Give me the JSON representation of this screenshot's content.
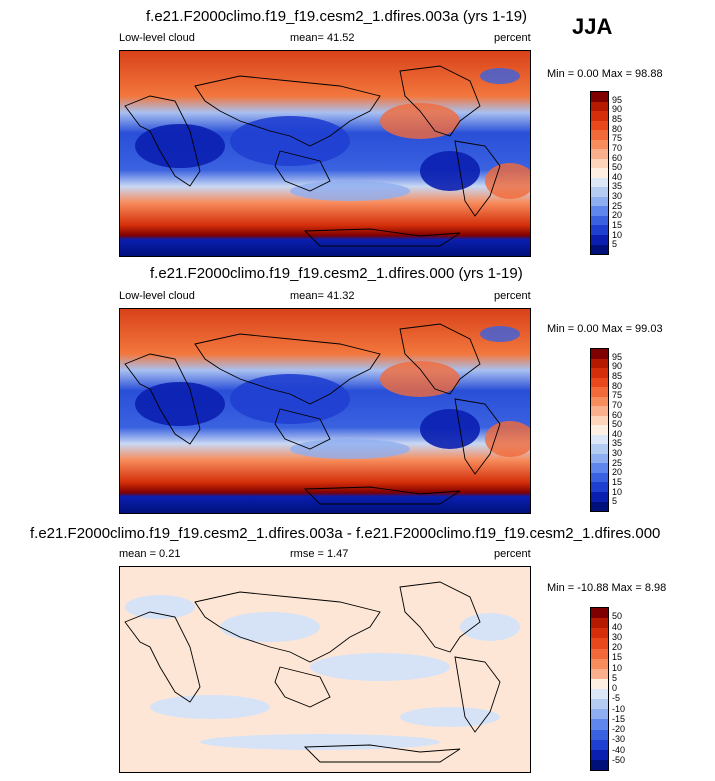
{
  "season": "JJA",
  "panels": [
    {
      "title": "f.e21.F2000climo.f19_f19.cesm2_1.dfires.003a (yrs 1-19)",
      "left_label": "Low-level cloud",
      "stat_label": "mean= ",
      "stat_value": "41.52",
      "units": "percent",
      "minmax": "Min =   0.00 Max =  98.88",
      "colorbar_labels": [
        "95",
        "90",
        "85",
        "80",
        "75",
        "70",
        "60",
        "50",
        "40",
        "35",
        "30",
        "25",
        "20",
        "15",
        "10",
        "5"
      ],
      "colorbar_colors": [
        "#7f0000",
        "#b51a00",
        "#d42f0a",
        "#e8481c",
        "#f26a3a",
        "#f78c5c",
        "#fab08c",
        "#fdd5bb",
        "#fdf0e2",
        "#dce8f8",
        "#b5ccf2",
        "#8eaef0",
        "#5f86ec",
        "#3a62e0",
        "#1f3fd0",
        "#0a1fb0",
        "#00107a"
      ]
    },
    {
      "title": "f.e21.F2000climo.f19_f19.cesm2_1.dfires.000 (yrs 1-19)",
      "left_label": "Low-level cloud",
      "stat_label": "mean= ",
      "stat_value": "41.32",
      "units": "percent",
      "minmax": "Min =   0.00 Max =  99.03",
      "colorbar_labels": [
        "95",
        "90",
        "85",
        "80",
        "75",
        "70",
        "60",
        "50",
        "40",
        "35",
        "30",
        "25",
        "20",
        "15",
        "10",
        "5"
      ],
      "colorbar_colors": [
        "#7f0000",
        "#b51a00",
        "#d42f0a",
        "#e8481c",
        "#f26a3a",
        "#f78c5c",
        "#fab08c",
        "#fdd5bb",
        "#fdf0e2",
        "#dce8f8",
        "#b5ccf2",
        "#8eaef0",
        "#5f86ec",
        "#3a62e0",
        "#1f3fd0",
        "#0a1fb0",
        "#00107a"
      ]
    },
    {
      "title": "f.e21.F2000climo.f19_f19.cesm2_1.dfires.003a - f.e21.F2000climo.f19_f19.cesm2_1.dfires.000",
      "left_label": "mean =   0.21",
      "stat_label": "rmse =  ",
      "stat_value": "1.47",
      "units": "percent",
      "minmax": "Min = -10.88 Max =   8.98",
      "colorbar_labels": [
        "50",
        "40",
        "30",
        "20",
        "15",
        "10",
        "5",
        "0",
        "-5",
        "-10",
        "-15",
        "-20",
        "-30",
        "-40",
        "-50"
      ],
      "colorbar_colors": [
        "#7f0000",
        "#b51a00",
        "#d42f0a",
        "#e8481c",
        "#f26a3a",
        "#f78c5c",
        "#fab08c",
        "#fdf0e2",
        "#dce8f8",
        "#b5ccf2",
        "#8eaef0",
        "#5f86ec",
        "#3a62e0",
        "#1f3fd0",
        "#0a1fb0",
        "#00107a"
      ]
    }
  ]
}
